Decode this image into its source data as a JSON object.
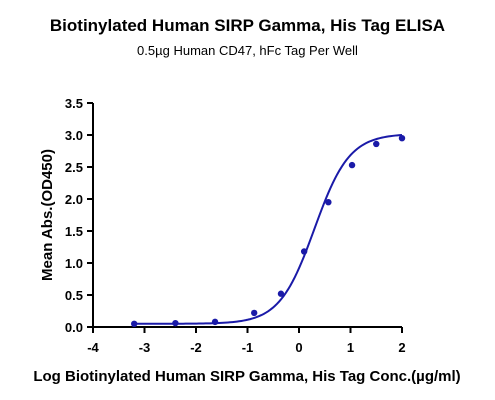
{
  "chart_data": {
    "type": "line",
    "title": "Biotinylated Human SIRP Gamma, His Tag ELISA",
    "subtitle": "0.5µg Human CD47, hFc Tag Per Well",
    "xlabel": "Log Biotinylated Human SIRP Gamma, His Tag Conc.(µg/ml)",
    "ylabel": "Mean Abs.(OD450)",
    "xlim": [
      -4,
      2
    ],
    "ylim": [
      0,
      3.5
    ],
    "x_ticks": [
      "-4",
      "-3",
      "-2",
      "-1",
      "0",
      "1",
      "2"
    ],
    "y_ticks": [
      "0.0",
      "0.5",
      "1.0",
      "1.5",
      "2.0",
      "2.5",
      "3.0",
      "3.5"
    ],
    "grid": false,
    "series": [
      {
        "color": "#1a1aa8",
        "points": [
          {
            "x": -3.2,
            "y": 0.05
          },
          {
            "x": -2.4,
            "y": 0.06
          },
          {
            "x": -1.63,
            "y": 0.08
          },
          {
            "x": -0.87,
            "y": 0.22
          },
          {
            "x": -0.35,
            "y": 0.52
          },
          {
            "x": 0.1,
            "y": 1.18
          },
          {
            "x": 0.57,
            "y": 1.95
          },
          {
            "x": 1.03,
            "y": 2.53
          },
          {
            "x": 1.5,
            "y": 2.86
          },
          {
            "x": 2.0,
            "y": 2.95
          }
        ],
        "fit": {
          "bottom": 0.05,
          "top": 3.02,
          "logEC50": 0.3,
          "hill": 1.28
        }
      }
    ]
  }
}
